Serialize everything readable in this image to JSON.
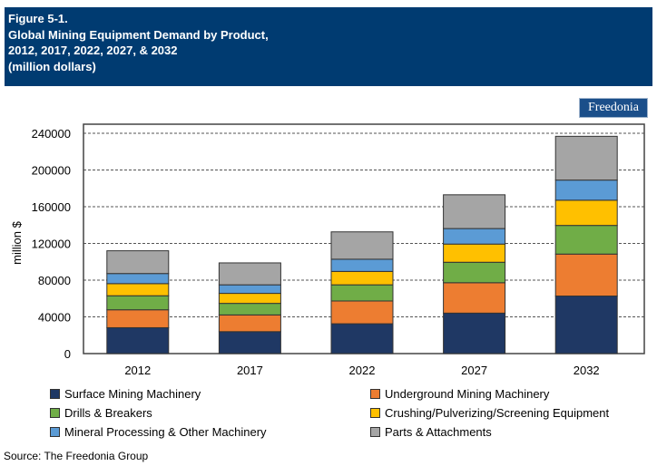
{
  "header": {
    "lines": [
      "Figure 5-1.",
      "Global Mining Equipment Demand by Product,",
      "2012, 2017, 2022, 2027, & 2032",
      "(million dollars)"
    ]
  },
  "logo": "Freedonia",
  "source": "Source: The Freedonia Group",
  "chart_data": {
    "type": "bar",
    "stacked": true,
    "title": "Global Mining Equipment Demand by Product, 2012, 2017, 2022, 2027, & 2032",
    "xlabel": "",
    "ylabel": "million $",
    "ylim": [
      0,
      240000
    ],
    "yticks": [
      0,
      40000,
      80000,
      120000,
      160000,
      200000,
      240000
    ],
    "grid": true,
    "legend_position": "bottom",
    "categories": [
      "2012",
      "2017",
      "2022",
      "2027",
      "2032"
    ],
    "series": [
      {
        "name": "Surface Mining Machinery",
        "color": "#1f3864",
        "values": [
          28200,
          23900,
          32500,
          44100,
          62700
        ]
      },
      {
        "name": "Underground Mining Machinery",
        "color": "#ed7d31",
        "values": [
          19500,
          18200,
          24800,
          33100,
          45700
        ]
      },
      {
        "name": "Drills & Breakers",
        "color": "#70ad47",
        "values": [
          15300,
          12600,
          17600,
          22300,
          31200
        ]
      },
      {
        "name": "Crushing/Pulverizing/Screening Equipment",
        "color": "#ffc000",
        "values": [
          13200,
          10900,
          14600,
          19800,
          27500
        ]
      },
      {
        "name": "Mineral Processing & Other Machinery",
        "color": "#5b9bd5",
        "values": [
          11000,
          9300,
          13300,
          16900,
          21900
        ]
      },
      {
        "name": "Parts & Attachments",
        "color": "#a5a5a5",
        "values": [
          24800,
          23900,
          29800,
          36800,
          47700
        ]
      }
    ]
  }
}
